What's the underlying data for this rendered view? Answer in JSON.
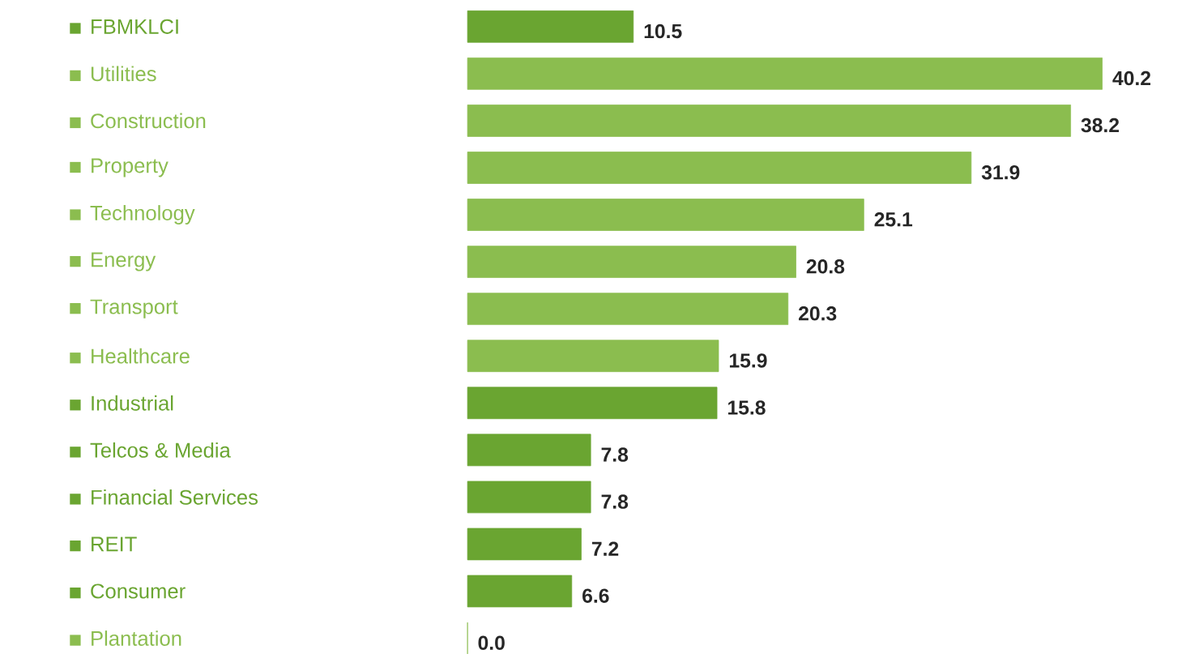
{
  "chart_data": {
    "type": "bar",
    "orientation": "horizontal",
    "data_labels": true,
    "categories": [
      "FBMKLCI",
      "Utilities",
      "Construction",
      "Property",
      "Technology",
      "Energy",
      "Transport",
      "Healthcare",
      "Industrial",
      "Telcos & Media",
      "Financial Services",
      "REIT",
      "Consumer",
      "Plantation"
    ],
    "values": [
      10.5,
      40.2,
      38.2,
      31.9,
      25.1,
      20.8,
      20.3,
      15.9,
      15.8,
      7.8,
      7.8,
      7.2,
      6.6,
      0.0
    ],
    "value_labels": [
      "10.5",
      "40.2",
      "38.2",
      "31.9",
      "25.1",
      "20.8",
      "20.3",
      "15.9",
      "15.8",
      "7.8",
      "7.8",
      "7.2",
      "6.6",
      "0.0"
    ],
    "colors": [
      "#6aa531",
      "#8bbd4f",
      "#8bbd4f",
      "#8bbd4f",
      "#8bbd4f",
      "#8bbd4f",
      "#8bbd4f",
      "#8bbd4f",
      "#6aa531",
      "#6aa531",
      "#6aa531",
      "#6aa531",
      "#6aa531",
      "#8bbd4f"
    ]
  }
}
